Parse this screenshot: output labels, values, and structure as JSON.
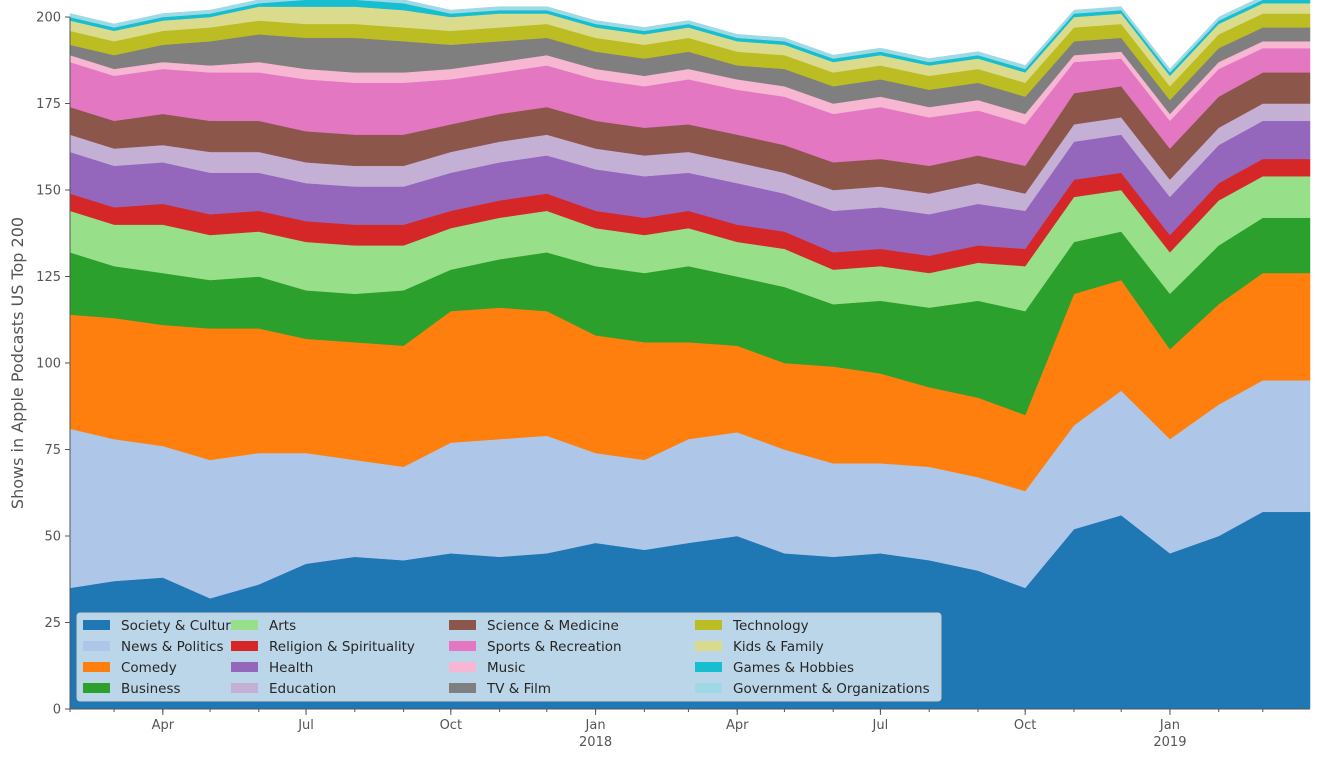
{
  "chart_data": {
    "type": "area",
    "stacked": true,
    "ylabel": "Shows in Apple Podcasts US Top 200",
    "xlabel": "",
    "x_range": [
      "2017-02-01",
      "2019-03-31"
    ],
    "ylim": [
      0,
      200
    ],
    "y_ticks": [
      0,
      25,
      50,
      75,
      100,
      125,
      150,
      175,
      200
    ],
    "x_ticks": [
      {
        "date": "2017-04-01",
        "label": "Apr",
        "sublabel": ""
      },
      {
        "date": "2017-07-01",
        "label": "Jul",
        "sublabel": ""
      },
      {
        "date": "2017-10-01",
        "label": "Oct",
        "sublabel": ""
      },
      {
        "date": "2018-01-01",
        "label": "Jan",
        "sublabel": "2018"
      },
      {
        "date": "2018-04-01",
        "label": "Apr",
        "sublabel": ""
      },
      {
        "date": "2018-07-01",
        "label": "Jul",
        "sublabel": ""
      },
      {
        "date": "2018-10-01",
        "label": "Oct",
        "sublabel": ""
      },
      {
        "date": "2019-01-01",
        "label": "Jan",
        "sublabel": "2019"
      }
    ],
    "grid": false,
    "legend_position": "lower-left",
    "x": [
      "2017-02-01",
      "2017-03-01",
      "2017-04-01",
      "2017-05-01",
      "2017-06-01",
      "2017-07-01",
      "2017-08-01",
      "2017-09-01",
      "2017-10-01",
      "2017-11-01",
      "2017-12-01",
      "2018-01-01",
      "2018-02-01",
      "2018-03-01",
      "2018-04-01",
      "2018-05-01",
      "2018-06-01",
      "2018-07-01",
      "2018-08-01",
      "2018-09-01",
      "2018-10-01",
      "2018-11-01",
      "2018-12-01",
      "2019-01-01",
      "2019-02-01",
      "2019-03-01"
    ],
    "series": [
      {
        "name": "Society & Culture",
        "color": "#1f77b4",
        "values": [
          35,
          37,
          38,
          32,
          36,
          42,
          44,
          43,
          45,
          44,
          45,
          48,
          46,
          48,
          50,
          45,
          44,
          45,
          43,
          40,
          35,
          52,
          56,
          45,
          50,
          57
        ]
      },
      {
        "name": "News & Politics",
        "color": "#aec7e8",
        "values": [
          46,
          41,
          38,
          40,
          38,
          32,
          28,
          27,
          32,
          34,
          34,
          26,
          26,
          30,
          30,
          30,
          27,
          26,
          27,
          27,
          28,
          30,
          36,
          33,
          38,
          38
        ]
      },
      {
        "name": "Comedy",
        "color": "#ff7f0e",
        "values": [
          33,
          35,
          35,
          38,
          36,
          33,
          34,
          35,
          38,
          38,
          36,
          34,
          34,
          28,
          25,
          25,
          28,
          26,
          23,
          23,
          22,
          38,
          32,
          26,
          29,
          31
        ]
      },
      {
        "name": "Business",
        "color": "#2ca02c",
        "values": [
          18,
          15,
          15,
          14,
          15,
          14,
          14,
          16,
          12,
          14,
          17,
          20,
          20,
          22,
          20,
          22,
          18,
          21,
          23,
          28,
          30,
          15,
          14,
          16,
          17,
          16
        ]
      },
      {
        "name": "Arts",
        "color": "#98df8a",
        "values": [
          12,
          12,
          14,
          13,
          13,
          14,
          14,
          13,
          12,
          12,
          12,
          11,
          11,
          11,
          10,
          11,
          10,
          10,
          10,
          11,
          13,
          13,
          12,
          12,
          13,
          12
        ]
      },
      {
        "name": "Religion & Spirituality",
        "color": "#d62728",
        "values": [
          5,
          5,
          6,
          6,
          6,
          6,
          6,
          6,
          5,
          5,
          5,
          5,
          5,
          5,
          5,
          5,
          5,
          5,
          5,
          5,
          5,
          5,
          5,
          5,
          5,
          5
        ]
      },
      {
        "name": "Health",
        "color": "#9467bd",
        "values": [
          12,
          12,
          12,
          12,
          11,
          11,
          11,
          11,
          11,
          11,
          11,
          12,
          12,
          11,
          12,
          11,
          12,
          12,
          12,
          12,
          11,
          11,
          11,
          11,
          11,
          11
        ]
      },
      {
        "name": "Education",
        "color": "#c5b0d5",
        "values": [
          5,
          5,
          5,
          6,
          6,
          6,
          6,
          6,
          6,
          6,
          6,
          6,
          6,
          6,
          6,
          6,
          6,
          6,
          6,
          6,
          5,
          5,
          5,
          5,
          5,
          5
        ]
      },
      {
        "name": "Science & Medicine",
        "color": "#8c564b",
        "values": [
          8,
          8,
          9,
          9,
          9,
          9,
          9,
          9,
          8,
          8,
          8,
          8,
          8,
          8,
          8,
          8,
          8,
          8,
          8,
          8,
          8,
          9,
          9,
          9,
          9,
          9
        ]
      },
      {
        "name": "Sports & Recreation",
        "color": "#e377c2",
        "values": [
          13,
          13,
          13,
          14,
          14,
          15,
          15,
          15,
          13,
          12,
          12,
          12,
          12,
          13,
          13,
          14,
          14,
          15,
          14,
          13,
          12,
          9,
          8,
          8,
          8,
          7
        ]
      },
      {
        "name": "Music",
        "color": "#f7b6d2",
        "values": [
          2,
          2,
          2,
          2,
          3,
          3,
          3,
          3,
          3,
          3,
          3,
          3,
          3,
          3,
          3,
          3,
          3,
          3,
          3,
          3,
          3,
          2,
          2,
          2,
          2,
          2
        ]
      },
      {
        "name": "TV & Film",
        "color": "#7f7f7f",
        "values": [
          3,
          4,
          5,
          7,
          8,
          9,
          10,
          9,
          7,
          6,
          5,
          5,
          5,
          5,
          4,
          5,
          5,
          5,
          5,
          5,
          5,
          4,
          4,
          4,
          4,
          4
        ]
      },
      {
        "name": "Technology",
        "color": "#bcbd22",
        "values": [
          4,
          4,
          4,
          4,
          4,
          4,
          4,
          4,
          4,
          4,
          4,
          4,
          4,
          4,
          4,
          4,
          4,
          4,
          4,
          4,
          4,
          4,
          4,
          4,
          4,
          4
        ]
      },
      {
        "name": "Kids & Family",
        "color": "#dbdb8d",
        "values": [
          3,
          3,
          3,
          3,
          4,
          5,
          5,
          5,
          4,
          4,
          3,
          3,
          3,
          3,
          3,
          3,
          3,
          3,
          3,
          3,
          3,
          3,
          3,
          3,
          3,
          3
        ]
      },
      {
        "name": "Games & Hobbies",
        "color": "#17becf",
        "values": [
          1,
          1,
          1,
          1,
          1,
          2,
          2,
          2,
          1,
          1,
          1,
          1,
          1,
          1,
          1,
          1,
          1,
          1,
          1,
          1,
          1,
          1,
          1,
          1,
          1,
          1
        ]
      },
      {
        "name": "Government & Organizations",
        "color": "#9edae5",
        "values": [
          1,
          1,
          1,
          1,
          1,
          1,
          1,
          1,
          1,
          1,
          1,
          1,
          1,
          1,
          1,
          1,
          1,
          1,
          1,
          1,
          1,
          1,
          1,
          1,
          1,
          1
        ]
      }
    ]
  }
}
